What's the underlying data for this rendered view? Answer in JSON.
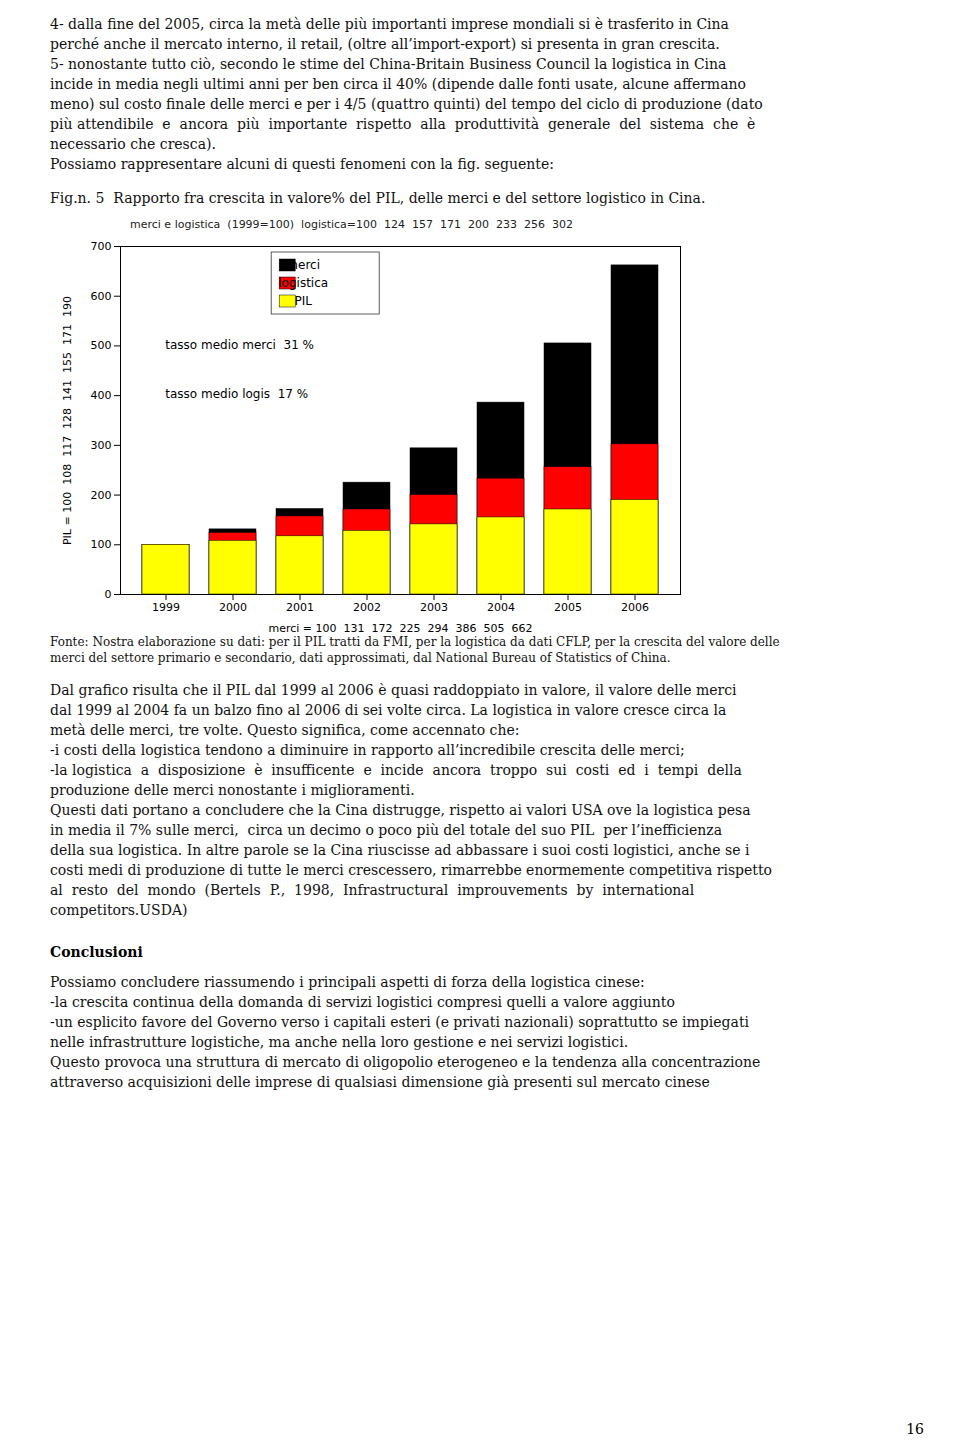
{
  "page": {
    "before": [
      "4- dalla fine del 2005, circa la metà delle più importanti imprese mondiali si è trasferito in Cina",
      "perché anche il mercato interno, il retail, (oltre all’import-export) si presenta in gran crescita.",
      "5- nonostante tutto ciò, secondo le stime del China-Britain Business Council la logistica in Cina",
      "incide in media negli ultimi anni per ben circa il 40% (dipende dalle fonti usate, alcune affermano",
      "meno) sul costo finale delle merci e per i 4/5 (quattro quinti) del tempo del ciclo di produzione (dato",
      "più attendibile  e  ancora  più  importante  rispetto  alla  produttività  generale  del  sistema  che  è",
      "necessario che cresca).",
      "Possiamo rappresentare alcuni di questi fenomeni con la fig. seguente:"
    ],
    "source": [
      "Fonte: Nostra elaborazione su dati: per il PIL tratti da FMI, per la logistica da dati CFLP, per la crescita del valore delle",
      "merci del settore primario e secondario, dati approssimati, dal National Bureau of Statistics of China."
    ],
    "after": [
      "Dal grafico risulta che il PIL dal 1999 al 2006 è quasi raddoppiato in valore, il valore delle merci",
      "dal 1999 al 2004 fa un balzo fino al 2006 di sei volte circa. La logistica in valore cresce circa la",
      "metà delle merci, tre volte. Questo significa, come accennato che:",
      "-i costi della logistica tendono a diminuire in rapporto all’incredibile crescita delle merci;",
      "-la logistica  a  disposizione  è  insufficente  e  incide  ancora  troppo  sui  costi  ed  i  tempi  della",
      "produzione delle merci nonostante i miglioramenti.",
      "Questi dati portano a concludere che la Cina distrugge, rispetto ai valori USA ove la logistica pesa",
      "in media il 7% sulle merci,  circa un decimo o poco più del totale del suo PIL  per l’inefficienza",
      "della sua logistica. In altre parole se la Cina riuscisse ad abbassare i suoi costi logistici, anche se i",
      "costi medi di produzione di tutte le merci crescessero, rimarrebbe enormemente competitiva rispetto",
      "al  resto  del  mondo  (Bertels  P.,  1998,  Infrastructural  improuvements  by  international",
      "competitors.USDA)"
    ],
    "heading": "Conclusioni",
    "conclusion": [
      "Possiamo concludere riassumendo i principali aspetti di forza della logistica cinese:",
      "-la crescita continua della domanda di servizi logistici compresi quelli a valore aggiunto",
      "-un esplicito favore del Governo verso i capitali esteri (e privati nazionali) soprattutto se impiegati",
      "nelle infrastrutture logistiche, ma anche nella loro gestione e nei servizi logistici.",
      "Questo provoca una struttura di mercato di oligopolio eterogeneo e la tendenza alla concentrazione",
      "attraverso acquisizioni delle imprese di qualsiasi dimensione già presenti sul mercato cinese"
    ],
    "page_number": "16"
  },
  "chart_data": {
    "type": "bar",
    "title": "Fig.n. 5  Rapporto fra crescita in valore% del PIL, delle merci e del settore logistico in Cina.",
    "subtitle": "merci e logistica  (1999=100)  logistica=100  124  157  171  200  233  256  302",
    "xlabel": "merci = 100  131  172  225  294  386  505  662",
    "ylabel": "PIL = 100  108  117  128  141  155  171  190",
    "categories": [
      "1999",
      "2000",
      "2001",
      "2002",
      "2003",
      "2004",
      "2005",
      "2006"
    ],
    "series": [
      {
        "name": "merci",
        "color": "#000000",
        "values": [
          100,
          131,
          172,
          225,
          294,
          386,
          505,
          662
        ]
      },
      {
        "name": "logistica",
        "color": "#FF0000",
        "values": [
          100,
          124,
          157,
          171,
          200,
          233,
          256,
          302
        ]
      },
      {
        "name": "PIL",
        "color": "#FFFF00",
        "values": [
          100,
          108,
          117,
          128,
          141,
          155,
          171,
          190
        ]
      }
    ],
    "ylim": [
      0,
      700
    ],
    "yticks": [
      0,
      100,
      200,
      300,
      400,
      500,
      600,
      700
    ],
    "annotations": [
      "tasso medio merci  31 %",
      "tasso medio logis  17 %"
    ],
    "legend": "upper left",
    "grid": false
  }
}
